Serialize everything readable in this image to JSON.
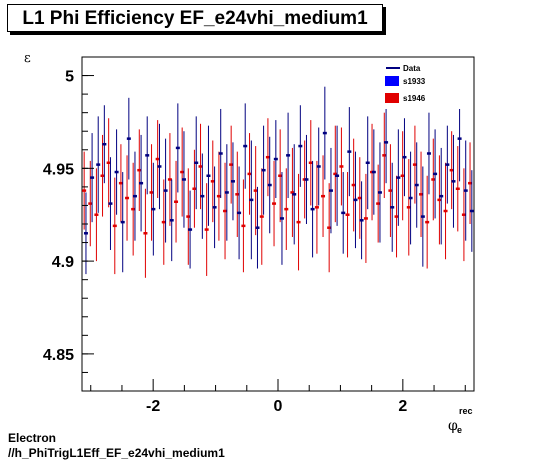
{
  "title": "L1 Phi Efficiency EF_e24vhi_medium1",
  "footer": {
    "line1": "Electron",
    "line2": "//h_PhiTrigL1Eff_EF_e24vhi_medium1"
  },
  "chart_data": {
    "type": "scatter",
    "title": "L1 Phi Efficiency EF_e24vhi_medium1",
    "ylabel": "ε",
    "xlabel": "φ_e^rec",
    "xlim": [
      -3.14,
      3.14
    ],
    "ylim": [
      4.83,
      5.01
    ],
    "xticks": [
      -2,
      0,
      2
    ],
    "yticks": [
      4.85,
      4.9,
      4.95,
      5
    ],
    "ytick_labels": [
      "4.85",
      "4.9",
      "4.95",
      "5"
    ],
    "xtick_labels": [
      "-2",
      "0",
      "2"
    ],
    "legend": {
      "placement": "top-right",
      "entries": [
        "Data",
        "s1933",
        "s1946"
      ]
    },
    "colors": {
      "Data": "#000080",
      "s1933": "#0000ff",
      "s1946": "#e00000"
    },
    "n_bins": 64,
    "series": [
      {
        "name": "Data",
        "values": [
          4.915,
          4.945,
          4.952,
          4.963,
          4.931,
          4.948,
          4.921,
          4.966,
          4.935,
          4.942,
          4.957,
          4.928,
          4.951,
          4.938,
          4.922,
          4.961,
          4.944,
          4.917,
          4.953,
          4.935,
          4.946,
          4.929,
          4.958,
          4.937,
          4.943,
          4.926,
          4.962,
          4.933,
          4.918,
          4.949,
          4.941,
          4.955,
          4.923,
          4.957,
          4.936,
          4.962,
          4.944,
          4.928,
          4.951,
          4.969,
          4.938,
          4.946,
          4.926,
          4.959,
          4.933,
          4.922,
          4.953,
          4.948,
          4.937,
          4.964,
          4.929,
          4.945,
          4.956,
          4.934,
          4.941,
          4.924,
          4.958,
          4.947,
          4.935,
          4.952,
          4.943,
          4.966,
          4.938,
          4.927
        ],
        "errors": [
          0.022,
          0.024,
          0.026,
          0.021,
          0.025,
          0.023,
          0.027,
          0.022,
          0.024,
          0.026,
          0.021,
          0.025,
          0.023,
          0.028,
          0.022,
          0.024,
          0.026,
          0.021,
          0.025,
          0.023,
          0.027,
          0.022,
          0.024,
          0.026,
          0.021,
          0.025,
          0.023,
          0.032,
          0.022,
          0.024,
          0.026,
          0.021,
          0.025,
          0.023,
          0.027,
          0.022,
          0.024,
          0.026,
          0.021,
          0.025,
          0.023,
          0.027,
          0.022,
          0.024,
          0.026,
          0.021,
          0.025,
          0.023,
          0.027,
          0.022,
          0.024,
          0.026,
          0.021,
          0.025,
          0.023,
          0.027,
          0.022,
          0.024,
          0.026,
          0.021,
          0.025,
          0.023,
          0.027,
          0.022
        ]
      },
      {
        "name": "s1946",
        "values": [
          4.938,
          4.931,
          4.925,
          4.946,
          4.953,
          4.919,
          4.942,
          4.934,
          4.928,
          4.949,
          4.915,
          4.937,
          4.955,
          4.921,
          4.944,
          4.932,
          4.948,
          4.924,
          4.939,
          4.951,
          4.917,
          4.943,
          4.935,
          4.927,
          4.952,
          4.936,
          4.919,
          4.947,
          4.938,
          4.924,
          4.956,
          4.931,
          4.946,
          4.928,
          4.937,
          4.921,
          4.944,
          4.953,
          4.929,
          4.935,
          4.918,
          4.947,
          4.951,
          4.925,
          4.941,
          4.934,
          4.923,
          4.948,
          4.931,
          4.957,
          4.938,
          4.924,
          4.946,
          4.929,
          4.952,
          4.936,
          4.921,
          4.944,
          4.933,
          4.927,
          4.949,
          4.939,
          4.925,
          4.942
        ],
        "errors": [
          0.021,
          0.023,
          0.025,
          0.022,
          0.024,
          0.026,
          0.021,
          0.023,
          0.025,
          0.022,
          0.024,
          0.026,
          0.021,
          0.023,
          0.025,
          0.022,
          0.024,
          0.026,
          0.021,
          0.023,
          0.025,
          0.022,
          0.024,
          0.026,
          0.021,
          0.023,
          0.025,
          0.022,
          0.024,
          0.026,
          0.021,
          0.023,
          0.025,
          0.022,
          0.024,
          0.026,
          0.021,
          0.023,
          0.025,
          0.022,
          0.024,
          0.026,
          0.021,
          0.023,
          0.025,
          0.022,
          0.024,
          0.026,
          0.021,
          0.023,
          0.025,
          0.022,
          0.024,
          0.026,
          0.021,
          0.023,
          0.025,
          0.022,
          0.024,
          0.026,
          0.021,
          0.023,
          0.025,
          0.022
        ]
      }
    ]
  }
}
